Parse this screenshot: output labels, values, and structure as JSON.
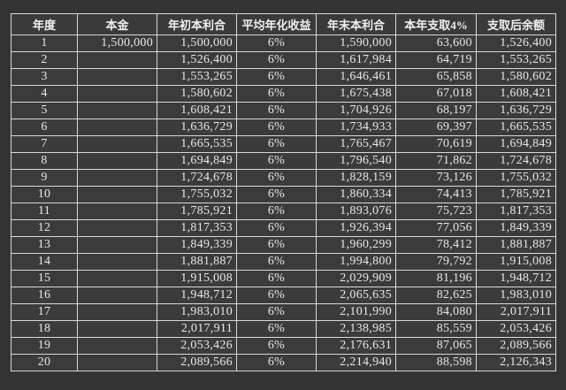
{
  "table": {
    "headers": [
      "年度",
      "本金",
      "年初本利合",
      "平均年化收益",
      "年末本利合",
      "本年支取4%",
      "支取后余额"
    ],
    "rows": [
      [
        "1",
        "1,500,000",
        "1,500,000",
        "6%",
        "1,590,000",
        "63,600",
        "1,526,400"
      ],
      [
        "2",
        "",
        "1,526,400",
        "6%",
        "1,617,984",
        "64,719",
        "1,553,265"
      ],
      [
        "3",
        "",
        "1,553,265",
        "6%",
        "1,646,461",
        "65,858",
        "1,580,602"
      ],
      [
        "4",
        "",
        "1,580,602",
        "6%",
        "1,675,438",
        "67,018",
        "1,608,421"
      ],
      [
        "5",
        "",
        "1,608,421",
        "6%",
        "1,704,926",
        "68,197",
        "1,636,729"
      ],
      [
        "6",
        "",
        "1,636,729",
        "6%",
        "1,734,933",
        "69,397",
        "1,665,535"
      ],
      [
        "7",
        "",
        "1,665,535",
        "6%",
        "1,765,467",
        "70,619",
        "1,694,849"
      ],
      [
        "8",
        "",
        "1,694,849",
        "6%",
        "1,796,540",
        "71,862",
        "1,724,678"
      ],
      [
        "9",
        "",
        "1,724,678",
        "6%",
        "1,828,159",
        "73,126",
        "1,755,032"
      ],
      [
        "10",
        "",
        "1,755,032",
        "6%",
        "1,860,334",
        "74,413",
        "1,785,921"
      ],
      [
        "11",
        "",
        "1,785,921",
        "6%",
        "1,893,076",
        "75,723",
        "1,817,353"
      ],
      [
        "12",
        "",
        "1,817,353",
        "6%",
        "1,926,394",
        "77,056",
        "1,849,339"
      ],
      [
        "13",
        "",
        "1,849,339",
        "6%",
        "1,960,299",
        "78,412",
        "1,881,887"
      ],
      [
        "14",
        "",
        "1,881,887",
        "6%",
        "1,994,800",
        "79,792",
        "1,915,008"
      ],
      [
        "15",
        "",
        "1,915,008",
        "6%",
        "2,029,909",
        "81,196",
        "1,948,712"
      ],
      [
        "16",
        "",
        "1,948,712",
        "6%",
        "2,065,635",
        "82,625",
        "1,983,010"
      ],
      [
        "17",
        "",
        "1,983,010",
        "6%",
        "2,101,990",
        "84,080",
        "2,017,911"
      ],
      [
        "18",
        "",
        "2,017,911",
        "6%",
        "2,138,985",
        "85,559",
        "2,053,426"
      ],
      [
        "19",
        "",
        "2,053,426",
        "6%",
        "2,176,631",
        "87,065",
        "2,089,566"
      ],
      [
        "20",
        "",
        "2,089,566",
        "6%",
        "2,214,940",
        "88,598",
        "2,126,343"
      ]
    ]
  }
}
